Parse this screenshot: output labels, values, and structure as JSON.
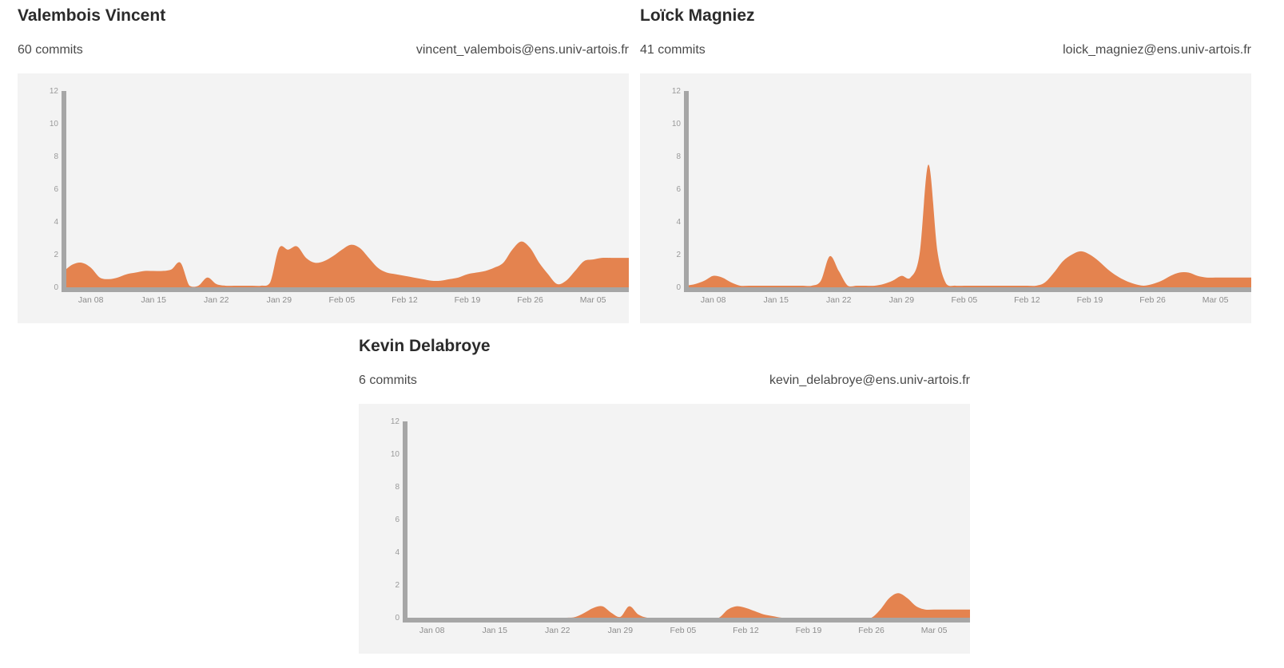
{
  "theme": {
    "area_color": "#e4834f",
    "axis_color": "#a6a6a6",
    "chart_bg": "#f3f3f3"
  },
  "contributors": [
    {
      "name": "Valembois Vincent",
      "commits_label": "60 commits",
      "email": "vincent_valembois@ens.univ-artois.fr"
    },
    {
      "name": "Loïck Magniez",
      "commits_label": "41 commits",
      "email": "loick_magniez@ens.univ-artois.fr"
    },
    {
      "name": "Kevin Delabroye",
      "commits_label": "6 commits",
      "email": "kevin_delabroye@ens.univ-artois.fr"
    }
  ],
  "chart_data": [
    {
      "type": "area",
      "ylim": [
        0,
        12
      ],
      "yticks": [
        "0",
        "2",
        "4",
        "6",
        "8",
        "10",
        "12"
      ],
      "xlim": [
        0,
        63
      ],
      "xticks": [
        {
          "day": 3,
          "label": "Jan 08"
        },
        {
          "day": 10,
          "label": "Jan 15"
        },
        {
          "day": 17,
          "label": "Jan 22"
        },
        {
          "day": 24,
          "label": "Jan 29"
        },
        {
          "day": 31,
          "label": "Feb 05"
        },
        {
          "day": 38,
          "label": "Feb 12"
        },
        {
          "day": 45,
          "label": "Feb 19"
        },
        {
          "day": 52,
          "label": "Feb 26"
        },
        {
          "day": 59,
          "label": "Mar 05"
        }
      ],
      "x": [
        0,
        1,
        2,
        3,
        4,
        5,
        6,
        7,
        8,
        9,
        10,
        11,
        12,
        13,
        14,
        15,
        16,
        17,
        18,
        19,
        20,
        21,
        22,
        23,
        24,
        25,
        26,
        27,
        28,
        29,
        30,
        31,
        32,
        33,
        34,
        35,
        36,
        37,
        38,
        39,
        40,
        41,
        42,
        43,
        44,
        45,
        46,
        47,
        48,
        49,
        50,
        51,
        52,
        53,
        54,
        55,
        56,
        57,
        58,
        59,
        60,
        61,
        62,
        63
      ],
      "values": [
        1.0,
        1.4,
        1.5,
        1.2,
        0.6,
        0.5,
        0.6,
        0.8,
        0.9,
        1.0,
        1.0,
        1.0,
        1.1,
        1.5,
        0.1,
        0.1,
        0.6,
        0.2,
        0.1,
        0.1,
        0.1,
        0.1,
        0.1,
        0.3,
        2.4,
        2.3,
        2.5,
        1.8,
        1.5,
        1.6,
        1.9,
        2.3,
        2.6,
        2.4,
        1.8,
        1.2,
        0.9,
        0.8,
        0.7,
        0.6,
        0.5,
        0.4,
        0.4,
        0.5,
        0.6,
        0.8,
        0.9,
        1.0,
        1.2,
        1.5,
        2.3,
        2.8,
        2.4,
        1.5,
        0.8,
        0.2,
        0.4,
        1.0,
        1.6,
        1.7,
        1.8,
        1.8,
        1.8,
        1.8
      ]
    },
    {
      "type": "area",
      "ylim": [
        0,
        12
      ],
      "yticks": [
        "0",
        "2",
        "4",
        "6",
        "8",
        "10",
        "12"
      ],
      "xlim": [
        0,
        63
      ],
      "xticks": [
        {
          "day": 3,
          "label": "Jan 08"
        },
        {
          "day": 10,
          "label": "Jan 15"
        },
        {
          "day": 17,
          "label": "Jan 22"
        },
        {
          "day": 24,
          "label": "Jan 29"
        },
        {
          "day": 31,
          "label": "Feb 05"
        },
        {
          "day": 38,
          "label": "Feb 12"
        },
        {
          "day": 45,
          "label": "Feb 19"
        },
        {
          "day": 52,
          "label": "Feb 26"
        },
        {
          "day": 59,
          "label": "Mar 05"
        }
      ],
      "x": [
        0,
        1,
        2,
        3,
        4,
        5,
        6,
        7,
        8,
        9,
        10,
        11,
        12,
        13,
        14,
        15,
        16,
        17,
        18,
        19,
        20,
        21,
        22,
        23,
        24,
        25,
        26,
        27,
        28,
        29,
        30,
        31,
        32,
        33,
        34,
        35,
        36,
        37,
        38,
        39,
        40,
        41,
        42,
        43,
        44,
        45,
        46,
        47,
        48,
        49,
        50,
        51,
        52,
        53,
        54,
        55,
        56,
        57,
        58,
        59,
        60,
        61,
        62,
        63
      ],
      "values": [
        0.1,
        0.2,
        0.4,
        0.7,
        0.6,
        0.3,
        0.1,
        0.1,
        0.1,
        0.1,
        0.1,
        0.1,
        0.1,
        0.1,
        0.1,
        0.4,
        1.9,
        1.0,
        0.1,
        0.1,
        0.1,
        0.1,
        0.2,
        0.4,
        0.7,
        0.6,
        2.0,
        7.5,
        2.2,
        0.2,
        0.1,
        0.1,
        0.1,
        0.1,
        0.1,
        0.1,
        0.1,
        0.1,
        0.1,
        0.1,
        0.3,
        0.9,
        1.6,
        2.0,
        2.2,
        2.0,
        1.6,
        1.1,
        0.7,
        0.4,
        0.2,
        0.1,
        0.2,
        0.4,
        0.7,
        0.9,
        0.9,
        0.7,
        0.6,
        0.6,
        0.6,
        0.6,
        0.6,
        0.6
      ]
    },
    {
      "type": "area",
      "ylim": [
        0,
        12
      ],
      "yticks": [
        "0",
        "2",
        "4",
        "6",
        "8",
        "10",
        "12"
      ],
      "xlim": [
        0,
        63
      ],
      "xticks": [
        {
          "day": 3,
          "label": "Jan 08"
        },
        {
          "day": 10,
          "label": "Jan 15"
        },
        {
          "day": 17,
          "label": "Jan 22"
        },
        {
          "day": 24,
          "label": "Jan 29"
        },
        {
          "day": 31,
          "label": "Feb 05"
        },
        {
          "day": 38,
          "label": "Feb 12"
        },
        {
          "day": 45,
          "label": "Feb 19"
        },
        {
          "day": 52,
          "label": "Feb 26"
        },
        {
          "day": 59,
          "label": "Mar 05"
        }
      ],
      "x": [
        0,
        1,
        2,
        3,
        4,
        5,
        6,
        7,
        8,
        9,
        10,
        11,
        12,
        13,
        14,
        15,
        16,
        17,
        18,
        19,
        20,
        21,
        22,
        23,
        24,
        25,
        26,
        27,
        28,
        29,
        30,
        31,
        32,
        33,
        34,
        35,
        36,
        37,
        38,
        39,
        40,
        41,
        42,
        43,
        44,
        45,
        46,
        47,
        48,
        49,
        50,
        51,
        52,
        53,
        54,
        55,
        56,
        57,
        58,
        59,
        60,
        61,
        62,
        63
      ],
      "values": [
        0,
        0,
        0,
        0,
        0,
        0,
        0,
        0,
        0,
        0,
        0,
        0,
        0,
        0,
        0,
        0,
        0,
        0,
        0,
        0.05,
        0.3,
        0.6,
        0.7,
        0.3,
        0.05,
        0.7,
        0.2,
        0,
        0,
        0,
        0,
        0,
        0,
        0,
        0,
        0,
        0.5,
        0.7,
        0.6,
        0.4,
        0.2,
        0.1,
        0,
        0,
        0,
        0,
        0,
        0,
        0,
        0,
        0,
        0,
        0,
        0.5,
        1.2,
        1.5,
        1.2,
        0.7,
        0.5,
        0.5,
        0.5,
        0.5,
        0.5,
        0.5
      ]
    }
  ]
}
